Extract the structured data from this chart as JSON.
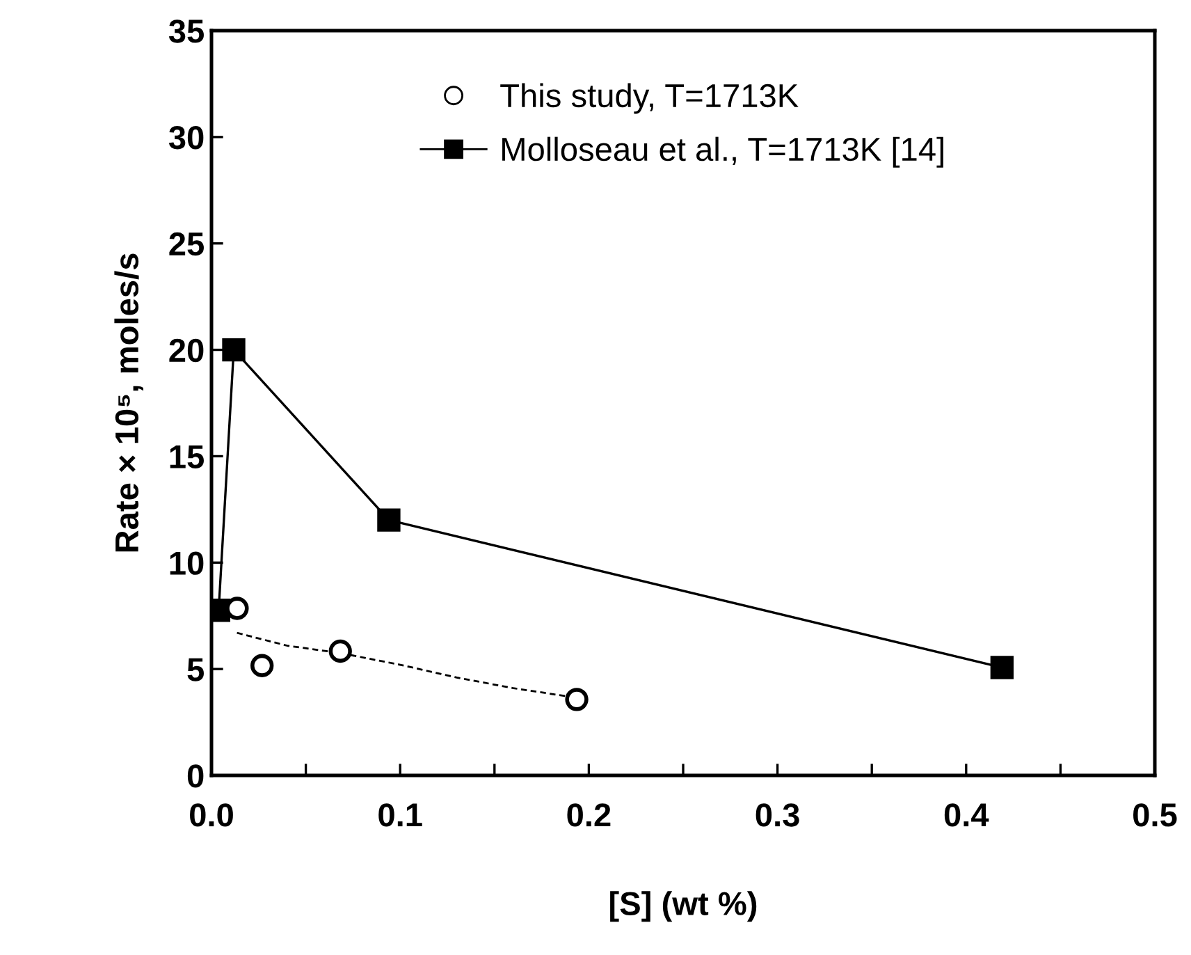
{
  "chart_data": {
    "type": "scatter",
    "xlabel": "[S] (wt %)",
    "ylabel": "Rate × 10⁵, moles/s",
    "xlim": [
      0,
      0.5
    ],
    "xticks": [
      {
        "value": 0,
        "label": "0.0"
      },
      0.1,
      0.2,
      0.3,
      0.4,
      0.5
    ],
    "ylim": [
      0,
      35
    ],
    "yticks": [
      0,
      5,
      10,
      15,
      20,
      25,
      30,
      35
    ],
    "grid": false,
    "legend": "top",
    "series": [
      {
        "name": "This study, T=1713K",
        "marker": "circle",
        "color": "#000000",
        "x": [
          0.0136,
          0.0268,
          0.0683,
          0.1936
        ],
        "values": [
          7.85,
          5.16,
          5.84,
          3.57
        ]
      },
      {
        "name": "Molloseau et al., T=1713K [14]",
        "type": "line",
        "marker": "square",
        "line_style": "solid",
        "color": "#000000",
        "x": [
          0.0038,
          0.0118,
          0.094,
          0.419
        ],
        "values": [
          7.76,
          20.0,
          12.0,
          5.07
        ]
      },
      {
        "type": "line",
        "marker": "none",
        "line_style": "dashed",
        "color": "#000000",
        "x": [
          0.0135,
          0.04,
          0.0683,
          0.1,
          0.13,
          0.16,
          0.19
        ],
        "values": [
          6.7,
          6.1,
          5.75,
          5.2,
          4.6,
          4.1,
          3.7
        ]
      }
    ]
  }
}
